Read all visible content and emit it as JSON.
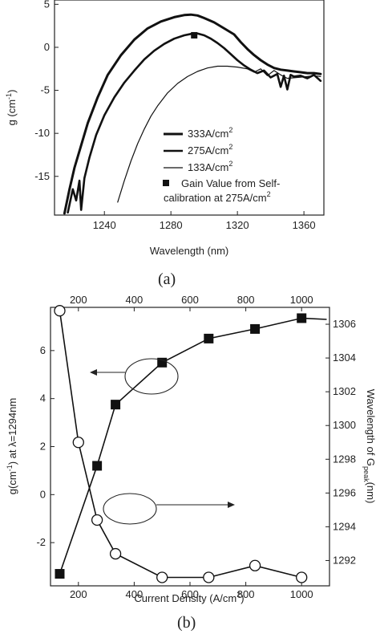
{
  "chart_data": [
    {
      "type": "line",
      "caption": "(a)",
      "xlabel": "Wavelength (nm)",
      "ylabel": "g (cm",
      "ylabel_sup": "-1",
      "ylabel_close": ")",
      "xlim": [
        1210,
        1372
      ],
      "ylim": [
        -19.5,
        5.5
      ],
      "xticks": [
        1240,
        1280,
        1320,
        1360
      ],
      "yticks": [
        5,
        0,
        -5,
        -10,
        -15
      ],
      "series": [
        {
          "name": "333A/cm",
          "name_sup": "2",
          "stroke": 3,
          "x": [
            1216,
            1219,
            1222,
            1226,
            1230,
            1236,
            1242,
            1250,
            1258,
            1266,
            1274,
            1282,
            1288,
            1292,
            1296,
            1300,
            1306,
            1312,
            1318,
            1322,
            1326,
            1330,
            1334,
            1338,
            1342,
            1346,
            1350,
            1354,
            1358,
            1362,
            1366,
            1370
          ],
          "y": [
            -19.3,
            -16.5,
            -14.0,
            -11.4,
            -8.8,
            -5.8,
            -3.2,
            -0.9,
            0.9,
            2.2,
            3.0,
            3.5,
            3.75,
            3.8,
            3.7,
            3.4,
            2.9,
            2.2,
            1.5,
            0.6,
            -0.2,
            -0.9,
            -1.5,
            -2.0,
            -2.4,
            -2.6,
            -2.7,
            -2.8,
            -2.9,
            -3.0,
            -3.0,
            -3.1
          ]
        },
        {
          "name": "275A/cm",
          "name_sup": "2",
          "stroke": 2.6,
          "x": [
            1218,
            1221,
            1223,
            1225,
            1226,
            1228,
            1231,
            1235,
            1240,
            1246,
            1252,
            1258,
            1264,
            1270,
            1276,
            1282,
            1288,
            1292,
            1296,
            1300,
            1304,
            1308,
            1312,
            1316,
            1320,
            1324,
            1328,
            1332,
            1336,
            1340,
            1344,
            1346,
            1348,
            1350,
            1352,
            1354,
            1358,
            1362,
            1366,
            1370
          ],
          "y": [
            -19.2,
            -16.5,
            -17.8,
            -15.5,
            -18.9,
            -15.2,
            -12.8,
            -10.2,
            -7.9,
            -5.8,
            -4.1,
            -2.7,
            -1.4,
            -0.4,
            0.4,
            1.0,
            1.4,
            1.55,
            1.6,
            1.4,
            1.0,
            0.5,
            -0.1,
            -0.8,
            -1.5,
            -2.1,
            -2.6,
            -3.0,
            -2.7,
            -3.5,
            -3.1,
            -4.6,
            -3.3,
            -4.9,
            -3.2,
            -3.4,
            -3.3,
            -3.6,
            -3.2,
            -3.9
          ]
        },
        {
          "name": "133A/cm",
          "name_sup": "2",
          "stroke": 1.2,
          "x": [
            1248,
            1252,
            1256,
            1260,
            1264,
            1268,
            1272,
            1278,
            1284,
            1290,
            1296,
            1302,
            1308,
            1314,
            1320,
            1326,
            1330,
            1334,
            1338,
            1342,
            1346,
            1350,
            1356,
            1362,
            1366,
            1370
          ],
          "y": [
            -18.0,
            -15.5,
            -13.2,
            -11.2,
            -9.5,
            -8.0,
            -6.8,
            -5.3,
            -4.2,
            -3.4,
            -2.8,
            -2.4,
            -2.2,
            -2.2,
            -2.3,
            -2.5,
            -2.9,
            -2.5,
            -3.3,
            -2.7,
            -3.2,
            -3.6,
            -3.5,
            -3.4,
            -3.3,
            -3.4
          ]
        }
      ],
      "marker_series": {
        "name": "Gain Value from Self-",
        "name_line2": "calibration at 275A/cm",
        "name_line2_sup": "2",
        "x": [
          1294
        ],
        "y": [
          1.4
        ]
      }
    },
    {
      "type": "line",
      "caption": "(b)",
      "xlabel": "Current Density (A/cm",
      "xlabel_sup": "2",
      "xlabel_close": ")",
      "ylabel_left": "g(cm",
      "ylabel_left_sup": "-1",
      "ylabel_left_close": ") at λ=1294nm",
      "ylabel_right": "Wavelength of G",
      "ylabel_right_sub": "peak",
      "ylabel_right_close": "(nm)",
      "xlim": [
        100,
        1100
      ],
      "ylim_left": [
        -3.8,
        7.8
      ],
      "ylim_right": [
        1290.5,
        1307.0
      ],
      "xticks_bottom": [
        200,
        400,
        600,
        800,
        1000
      ],
      "xticks_top": [
        200,
        400,
        600,
        800,
        1000
      ],
      "yticks_left": [
        6,
        4,
        2,
        0,
        -2
      ],
      "yticks_right": [
        1306,
        1304,
        1302,
        1300,
        1298,
        1296,
        1294,
        1292
      ],
      "gain_series": {
        "marker": "filled-square",
        "axis": "left",
        "x": [
          133,
          267,
          333,
          500,
          667,
          833,
          1000
        ],
        "y": [
          -3.3,
          1.2,
          3.75,
          5.5,
          6.5,
          6.9,
          7.35
        ],
        "tail_x": 1090,
        "tail_y": 7.3
      },
      "peak_series": {
        "marker": "open-circle",
        "axis": "right",
        "x": [
          133,
          200,
          267,
          333,
          500,
          667,
          833,
          1000
        ],
        "y": [
          1306.8,
          1299.0,
          1294.4,
          1292.4,
          1291.0,
          1291.0,
          1291.7,
          1291.0
        ]
      },
      "annotations": [
        {
          "ellipse": "around gain curve",
          "arrow": "points left"
        },
        {
          "ellipse": "around peak curve",
          "arrow": "points right"
        }
      ]
    }
  ]
}
